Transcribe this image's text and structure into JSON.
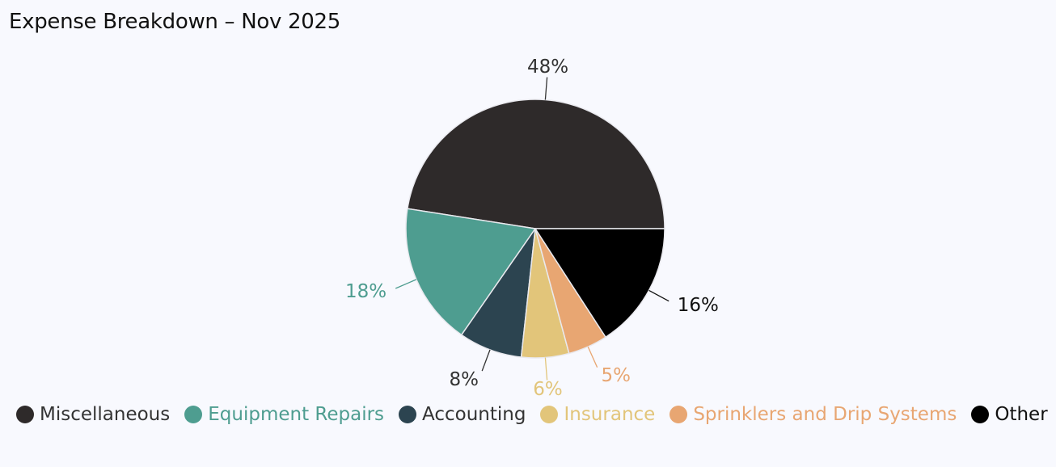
{
  "chart_data": {
    "type": "pie",
    "title": "Expense Breakdown – Nov 2025",
    "slices": [
      {
        "name": "Miscellaneous",
        "value": 48,
        "label": "48%",
        "color": "#2e2a2a",
        "text_color": "#333333"
      },
      {
        "name": "Equipment Repairs",
        "value": 18,
        "label": "18%",
        "color": "#4e9d90",
        "text_color": "#4e9d90"
      },
      {
        "name": "Accounting",
        "value": 8,
        "label": "8%",
        "color": "#2c4450",
        "text_color": "#333333"
      },
      {
        "name": "Insurance",
        "value": 6,
        "label": "6%",
        "color": "#e2c57a",
        "text_color": "#e2c57a"
      },
      {
        "name": "Sprinklers and Drip Systems",
        "value": 5,
        "label": "5%",
        "color": "#e8a672",
        "text_color": "#e8a672"
      },
      {
        "name": "Other",
        "value": 16,
        "label": "16%",
        "color": "#000000",
        "text_color": "#111111"
      }
    ],
    "legend_position": "bottom"
  }
}
